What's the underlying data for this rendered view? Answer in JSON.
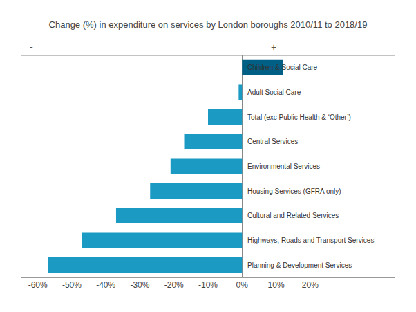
{
  "chart_data": {
    "type": "bar",
    "orientation": "horizontal",
    "title": "Change (%) in expenditure on services by London boroughs 2010/11 to 2018/19",
    "categories": [
      "Planning & Development Services",
      "Highways, Roads and Transport Services",
      "Cultural and Related Services",
      "Housing Services (GFRA only)",
      "Environmental Services",
      "Central Services",
      "Total (exc Public Health & ‘Other’)",
      "Adult Social Care",
      "Children & Social Care"
    ],
    "values": [
      -57,
      -47,
      -37,
      -27,
      -21,
      -17,
      -10,
      -1,
      12
    ],
    "colors": [
      "#1b9ac4",
      "#1b9ac4",
      "#1b9ac4",
      "#1b9ac4",
      "#1b9ac4",
      "#1b9ac4",
      "#1b9ac4",
      "#1b9ac4",
      "#005f85"
    ],
    "xlim": [
      -65,
      45
    ],
    "xticks": [
      {
        "value": -60,
        "label": "-60%"
      },
      {
        "value": -50,
        "label": "-50%"
      },
      {
        "value": -40,
        "label": "-40%"
      },
      {
        "value": -30,
        "label": "-30%"
      },
      {
        "value": -20,
        "label": "-20%"
      },
      {
        "value": -10,
        "label": "-10%"
      },
      {
        "value": 0,
        "label": "0%"
      },
      {
        "value": 10,
        "label": "10%"
      },
      {
        "value": 20,
        "label": "20%"
      }
    ],
    "annotations": [
      "-",
      "+"
    ],
    "grid": false,
    "tick_labels": "x"
  }
}
